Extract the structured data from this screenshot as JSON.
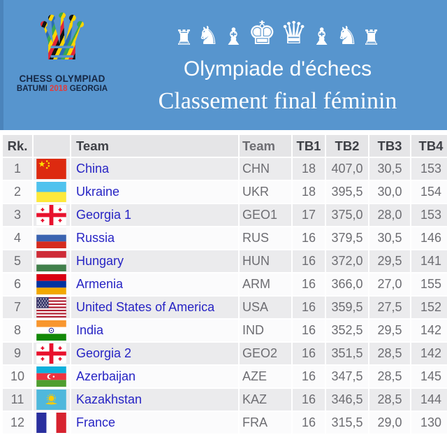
{
  "hero": {
    "bg_color": "#5795ce",
    "logo": {
      "queen_icon": "♛",
      "title": "CHESS OLYMPIAD",
      "city": "BATUMI",
      "year": "2018",
      "country": "GEORGIA"
    },
    "pieces": [
      "♜",
      "♞",
      "♝",
      "♚",
      "♛",
      "♝",
      "♞",
      "♜"
    ],
    "title_line1": "Olympiade d'échecs",
    "title_line2": "Classement final féminin"
  },
  "table": {
    "headers": {
      "rank": "Rk.",
      "flag": "",
      "team": "Team",
      "code": "Team",
      "tb1": "TB1",
      "tb2": "TB2",
      "tb3": "TB3",
      "tb4": "TB4"
    },
    "rows": [
      {
        "rank": "1",
        "flag": "cn",
        "team": "China",
        "code": "CHN",
        "tb1": "18",
        "tb2": "407,0",
        "tb3": "30,5",
        "tb4": "153"
      },
      {
        "rank": "2",
        "flag": "ua",
        "team": "Ukraine",
        "code": "UKR",
        "tb1": "18",
        "tb2": "395,5",
        "tb3": "30,0",
        "tb4": "154"
      },
      {
        "rank": "3",
        "flag": "ge",
        "team": "Georgia 1",
        "code": "GEO1",
        "tb1": "17",
        "tb2": "375,0",
        "tb3": "28,0",
        "tb4": "153"
      },
      {
        "rank": "4",
        "flag": "ru",
        "team": "Russia",
        "code": "RUS",
        "tb1": "16",
        "tb2": "379,5",
        "tb3": "30,5",
        "tb4": "146"
      },
      {
        "rank": "5",
        "flag": "hu",
        "team": "Hungary",
        "code": "HUN",
        "tb1": "16",
        "tb2": "372,0",
        "tb3": "29,5",
        "tb4": "141"
      },
      {
        "rank": "6",
        "flag": "am",
        "team": "Armenia",
        "code": "ARM",
        "tb1": "16",
        "tb2": "366,0",
        "tb3": "27,0",
        "tb4": "155"
      },
      {
        "rank": "7",
        "flag": "us",
        "team": "United States of America",
        "code": "USA",
        "tb1": "16",
        "tb2": "359,5",
        "tb3": "27,5",
        "tb4": "152"
      },
      {
        "rank": "8",
        "flag": "in",
        "team": "India",
        "code": "IND",
        "tb1": "16",
        "tb2": "352,5",
        "tb3": "29,5",
        "tb4": "142"
      },
      {
        "rank": "9",
        "flag": "ge",
        "team": "Georgia 2",
        "code": "GEO2",
        "tb1": "16",
        "tb2": "351,5",
        "tb3": "28,5",
        "tb4": "142"
      },
      {
        "rank": "10",
        "flag": "az",
        "team": "Azerbaijan",
        "code": "AZE",
        "tb1": "16",
        "tb2": "347,5",
        "tb3": "28,5",
        "tb4": "145"
      },
      {
        "rank": "11",
        "flag": "kz",
        "team": "Kazakhstan",
        "code": "KAZ",
        "tb1": "16",
        "tb2": "346,5",
        "tb3": "28,5",
        "tb4": "144"
      },
      {
        "rank": "12",
        "flag": "fr",
        "team": "France",
        "code": "FRA",
        "tb1": "16",
        "tb2": "315,5",
        "tb3": "29,0",
        "tb4": "130"
      }
    ]
  },
  "colors": {
    "header_blue": "#5795ce",
    "link_blue": "#2724c4",
    "muted_text": "#6d6d72",
    "header_cell_bg": "#e5e5e7",
    "odd_row_bg": "#ebebed",
    "even_row_bg": "#fbfbfc",
    "accent_red": "#e23b3b",
    "logo_navy": "#152744"
  }
}
